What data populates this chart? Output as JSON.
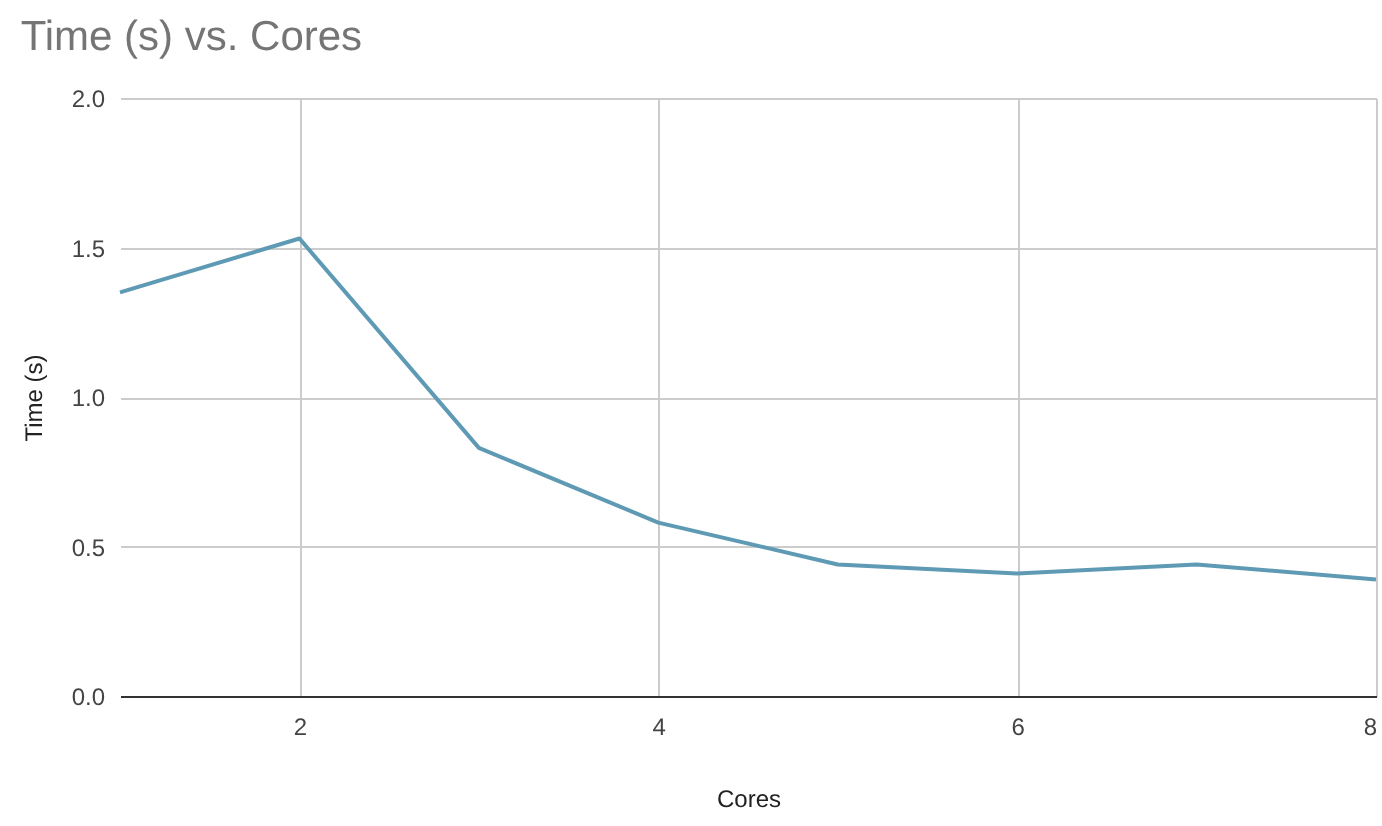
{
  "chart_data": {
    "type": "line",
    "title": "Time (s) vs. Cores",
    "xlabel": "Cores",
    "ylabel": "Time (s)",
    "x": [
      1,
      2,
      3,
      4,
      5,
      6,
      7,
      8
    ],
    "series": [
      {
        "color": "#5f9ab5",
        "values": [
          1.35,
          1.53,
          0.83,
          0.58,
          0.44,
          0.41,
          0.44,
          0.39
        ]
      }
    ],
    "xlim": [
      1,
      8
    ],
    "xticks": [
      2,
      4,
      6,
      8
    ],
    "ylim": [
      0,
      2
    ],
    "yticks": [
      {
        "value": 0,
        "label": "0.0"
      },
      {
        "value": 0.5,
        "label": "0.5"
      },
      {
        "value": 1,
        "label": "1.0"
      },
      {
        "value": 1.5,
        "label": "1.5"
      },
      {
        "value": 2,
        "label": "2.0"
      }
    ],
    "grid": true,
    "marker": "none",
    "line_style": "solid",
    "legend": false
  }
}
